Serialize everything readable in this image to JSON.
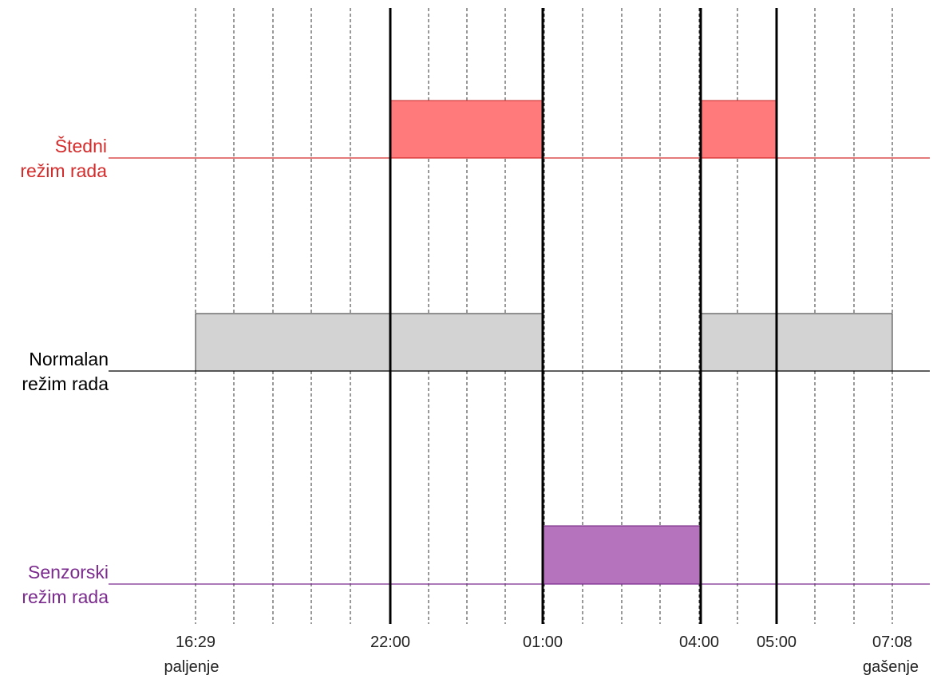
{
  "rows": [
    {
      "id": "stedni",
      "label_line1": "Štedni",
      "label_line2": "režim rada",
      "color": "#d42b2b",
      "fill": "#ff7b7b",
      "stroke": "#c62828",
      "segments": [
        {
          "start": "22:00",
          "end": "01:00"
        },
        {
          "start": "04:00",
          "end": "05:00"
        }
      ]
    },
    {
      "id": "normalan",
      "label_line1": "Normalan",
      "label_line2": "režim rada",
      "color": "#000000",
      "fill": "#d3d3d3",
      "stroke": "#333333",
      "segments": [
        {
          "start": "16:29",
          "end": "01:00"
        },
        {
          "start": "04:00",
          "end": "07:08"
        }
      ]
    },
    {
      "id": "senzorski",
      "label_line1": "Senzorski",
      "label_line2": "režim rada",
      "color": "#7b2a8e",
      "fill": "#b673bd",
      "stroke": "#6a1b7a",
      "segments": [
        {
          "start": "01:00",
          "end": "04:00"
        }
      ]
    }
  ],
  "time_labels": [
    {
      "time": "16:29",
      "sub": "paljenje"
    },
    {
      "time": "22:00",
      "sub": ""
    },
    {
      "time": "01:00",
      "sub": ""
    },
    {
      "time": "04:00",
      "sub": ""
    },
    {
      "time": "05:00",
      "sub": ""
    },
    {
      "time": "07:08",
      "sub": "gašenje"
    }
  ],
  "boundary_times": [
    "22:00",
    "01:00",
    "04:00",
    "05:00"
  ],
  "start_time": "16:29",
  "end_time": "07:08"
}
